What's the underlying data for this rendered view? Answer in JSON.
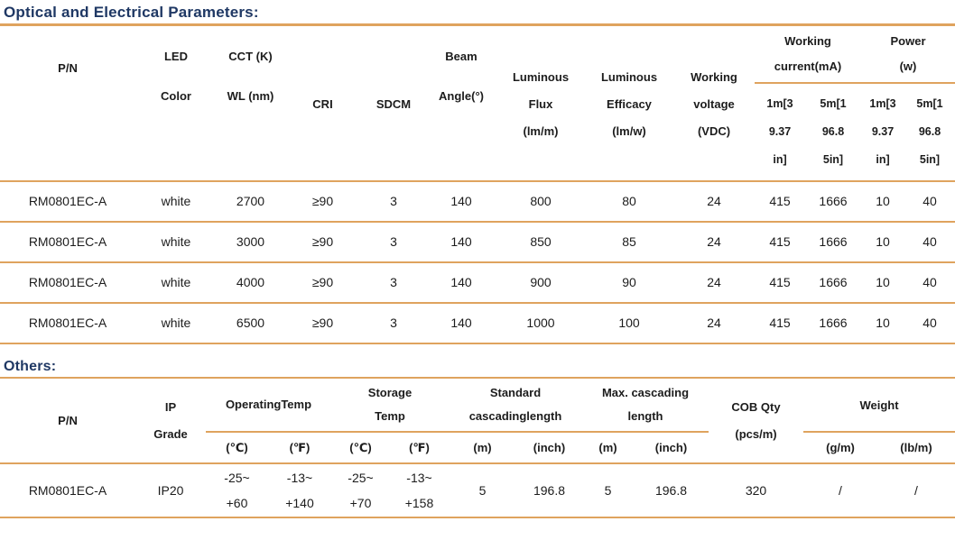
{
  "theme": {
    "accent": "#dfa35e",
    "title_color": "#1f3864",
    "text_color": "#1c1c1c",
    "bg": "#ffffff"
  },
  "optical": {
    "title": "Optical and Electrical Parameters:",
    "header": {
      "pn": "P/N",
      "led_color": "LED\nColor",
      "cct_wl": "CCT (K)\nWL (nm)",
      "cri": "CRI",
      "sdcm": "SDCM",
      "beam_angle": "Beam\nAngle(°)",
      "luminous_flux": "Luminous\nFlux\n(lm/m)",
      "luminous_efficacy": "Luminous\nEfficacy\n(lm/w)",
      "working_voltage": "Working\nvoltage\n(VDC)",
      "working_current": "Working\ncurrent(mA)",
      "power": "Power\n(w)",
      "sub_1m": "1m[3\n9.37\nin]",
      "sub_5m": "5m[1\n96.8\n5in]"
    },
    "rows": [
      [
        "RM0801EC-A",
        "white",
        "2700",
        "≥90",
        "3",
        "140",
        "800",
        "80",
        "24",
        "415",
        "1666",
        "10",
        "40"
      ],
      [
        "RM0801EC-A",
        "white",
        "3000",
        "≥90",
        "3",
        "140",
        "850",
        "85",
        "24",
        "415",
        "1666",
        "10",
        "40"
      ],
      [
        "RM0801EC-A",
        "white",
        "4000",
        "≥90",
        "3",
        "140",
        "900",
        "90",
        "24",
        "415",
        "1666",
        "10",
        "40"
      ],
      [
        "RM0801EC-A",
        "white",
        "6500",
        "≥90",
        "3",
        "140",
        "1000",
        "100",
        "24",
        "415",
        "1666",
        "10",
        "40"
      ]
    ]
  },
  "others": {
    "title": "Others:",
    "header": {
      "pn": "P/N",
      "ip_grade": "IP\nGrade",
      "operating_temp": "OperatingTemp",
      "storage_temp": "Storage\nTemp",
      "standard_cascading": "Standard\ncascadinglength",
      "max_cascading": "Max. cascading\nlength",
      "cob_qty": "COB Qty\n(pcs/m)",
      "weight": "Weight",
      "sub_c": "(℃)",
      "sub_f": "(℉)",
      "sub_m": "(m)",
      "sub_inch": "(inch)",
      "sub_gm": "(g/m)",
      "sub_lbm": "(lb/m)"
    },
    "row": [
      "RM0801EC-A",
      "IP20",
      "-25~\n+60",
      "-13~\n+140",
      "-25~\n+70",
      "-13~\n+158",
      "5",
      "196.8",
      "5",
      "196.8",
      "320",
      "/",
      "/"
    ]
  }
}
